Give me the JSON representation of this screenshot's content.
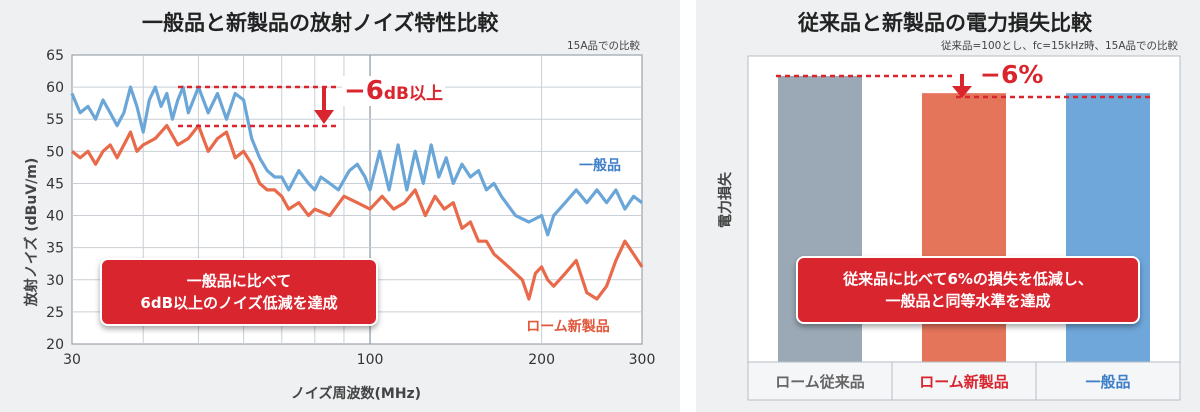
{
  "chart_data": [
    {
      "type": "line",
      "title": "一般品と新製品の放射ノイズ特性比較",
      "subtitle": "15A品での比較",
      "xlabel": "ノイズ周波数(MHz)",
      "ylabel": "放射ノイズ (dBuV/m)",
      "x_scale": "log",
      "xlim": [
        30,
        300
      ],
      "ylim": [
        20,
        65
      ],
      "x_ticks": [
        30,
        100,
        200,
        300
      ],
      "y_ticks": [
        20,
        25,
        30,
        35,
        40,
        45,
        50,
        55,
        60,
        65
      ],
      "grid": true,
      "series": [
        {
          "name": "一般品",
          "color": "#6aa6d8",
          "points": [
            [
              30,
              59
            ],
            [
              31,
              56
            ],
            [
              32,
              57
            ],
            [
              33,
              55
            ],
            [
              34,
              58
            ],
            [
              35,
              56
            ],
            [
              36,
              54
            ],
            [
              37,
              56
            ],
            [
              38,
              60
            ],
            [
              39,
              57
            ],
            [
              40,
              53
            ],
            [
              41,
              58
            ],
            [
              42,
              60
            ],
            [
              43,
              57
            ],
            [
              44,
              59
            ],
            [
              45,
              55
            ],
            [
              46,
              58
            ],
            [
              47,
              60
            ],
            [
              48,
              56
            ],
            [
              50,
              60
            ],
            [
              52,
              56
            ],
            [
              54,
              59
            ],
            [
              56,
              55
            ],
            [
              58,
              59
            ],
            [
              60,
              58
            ],
            [
              62,
              52
            ],
            [
              64,
              49
            ],
            [
              66,
              47
            ],
            [
              68,
              46
            ],
            [
              70,
              46
            ],
            [
              72,
              44
            ],
            [
              75,
              47
            ],
            [
              78,
              45
            ],
            [
              80,
              44
            ],
            [
              82,
              46
            ],
            [
              85,
              45
            ],
            [
              88,
              44
            ],
            [
              92,
              47
            ],
            [
              95,
              48
            ],
            [
              98,
              46
            ],
            [
              100,
              44
            ],
            [
              104,
              50
            ],
            [
              108,
              44
            ],
            [
              112,
              51
            ],
            [
              116,
              44
            ],
            [
              120,
              50
            ],
            [
              124,
              45
            ],
            [
              128,
              51
            ],
            [
              132,
              46
            ],
            [
              136,
              49
            ],
            [
              140,
              45
            ],
            [
              145,
              48
            ],
            [
              150,
              46
            ],
            [
              155,
              47
            ],
            [
              160,
              44
            ],
            [
              165,
              45
            ],
            [
              170,
              43
            ],
            [
              180,
              40
            ],
            [
              190,
              39
            ],
            [
              200,
              40
            ],
            [
              205,
              37
            ],
            [
              210,
              40
            ],
            [
              220,
              42
            ],
            [
              230,
              44
            ],
            [
              240,
              42
            ],
            [
              250,
              44
            ],
            [
              260,
              42
            ],
            [
              270,
              44
            ],
            [
              280,
              41
            ],
            [
              290,
              43
            ],
            [
              300,
              42
            ]
          ]
        },
        {
          "name": "ローム新製品",
          "color": "#e86a4a",
          "points": [
            [
              30,
              50
            ],
            [
              31,
              49
            ],
            [
              32,
              50
            ],
            [
              33,
              48
            ],
            [
              34,
              50
            ],
            [
              35,
              51
            ],
            [
              36,
              49
            ],
            [
              37,
              51
            ],
            [
              38,
              53
            ],
            [
              39,
              50
            ],
            [
              40,
              51
            ],
            [
              42,
              52
            ],
            [
              44,
              54
            ],
            [
              46,
              51
            ],
            [
              48,
              52
            ],
            [
              50,
              54
            ],
            [
              52,
              50
            ],
            [
              54,
              52
            ],
            [
              56,
              53
            ],
            [
              58,
              49
            ],
            [
              60,
              50
            ],
            [
              62,
              48
            ],
            [
              64,
              45
            ],
            [
              66,
              44
            ],
            [
              68,
              44
            ],
            [
              70,
              43
            ],
            [
              72,
              41
            ],
            [
              75,
              42
            ],
            [
              78,
              40
            ],
            [
              80,
              41
            ],
            [
              85,
              40
            ],
            [
              90,
              43
            ],
            [
              95,
              42
            ],
            [
              100,
              41
            ],
            [
              105,
              43
            ],
            [
              110,
              41
            ],
            [
              115,
              42
            ],
            [
              120,
              44
            ],
            [
              125,
              40
            ],
            [
              130,
              43
            ],
            [
              135,
              41
            ],
            [
              140,
              42
            ],
            [
              145,
              38
            ],
            [
              150,
              39
            ],
            [
              155,
              36
            ],
            [
              160,
              36
            ],
            [
              165,
              34
            ],
            [
              170,
              33
            ],
            [
              175,
              32
            ],
            [
              180,
              31
            ],
            [
              185,
              30
            ],
            [
              190,
              27
            ],
            [
              195,
              31
            ],
            [
              200,
              32
            ],
            [
              205,
              30
            ],
            [
              210,
              29
            ],
            [
              215,
              30
            ],
            [
              220,
              31
            ],
            [
              230,
              33
            ],
            [
              240,
              28
            ],
            [
              250,
              27
            ],
            [
              260,
              29
            ],
            [
              270,
              33
            ],
            [
              280,
              36
            ],
            [
              290,
              34
            ],
            [
              300,
              32
            ]
          ]
        }
      ],
      "annotations": [
        {
          "text_main": "−6",
          "text_unit": "dB以上"
        }
      ],
      "callout": [
        "一般品に比べて",
        "6dB以上のノイズ低減を達成"
      ],
      "series_labels": [
        "一般品",
        "ローム新製品"
      ]
    },
    {
      "type": "bar",
      "title": "従来品と新製品の電力損失比較",
      "subtitle": "従来品=100とし、fc=15kHz時、15A品での比較",
      "ylabel": "電力損失",
      "categories": [
        "ローム従来品",
        "ローム新製品",
        "一般品"
      ],
      "values": [
        100,
        94,
        94
      ],
      "colors": [
        "#9aa9b5",
        "#e4745a",
        "#6fa7db"
      ],
      "label_colors": [
        "#666666",
        "#d9252e",
        "#3f7fc8"
      ],
      "ylim": [
        0,
        100
      ],
      "annotation": "−6%",
      "callout": [
        "従来品に比べて6%の損失を低減し、",
        "一般品と同等水準を達成"
      ]
    }
  ]
}
